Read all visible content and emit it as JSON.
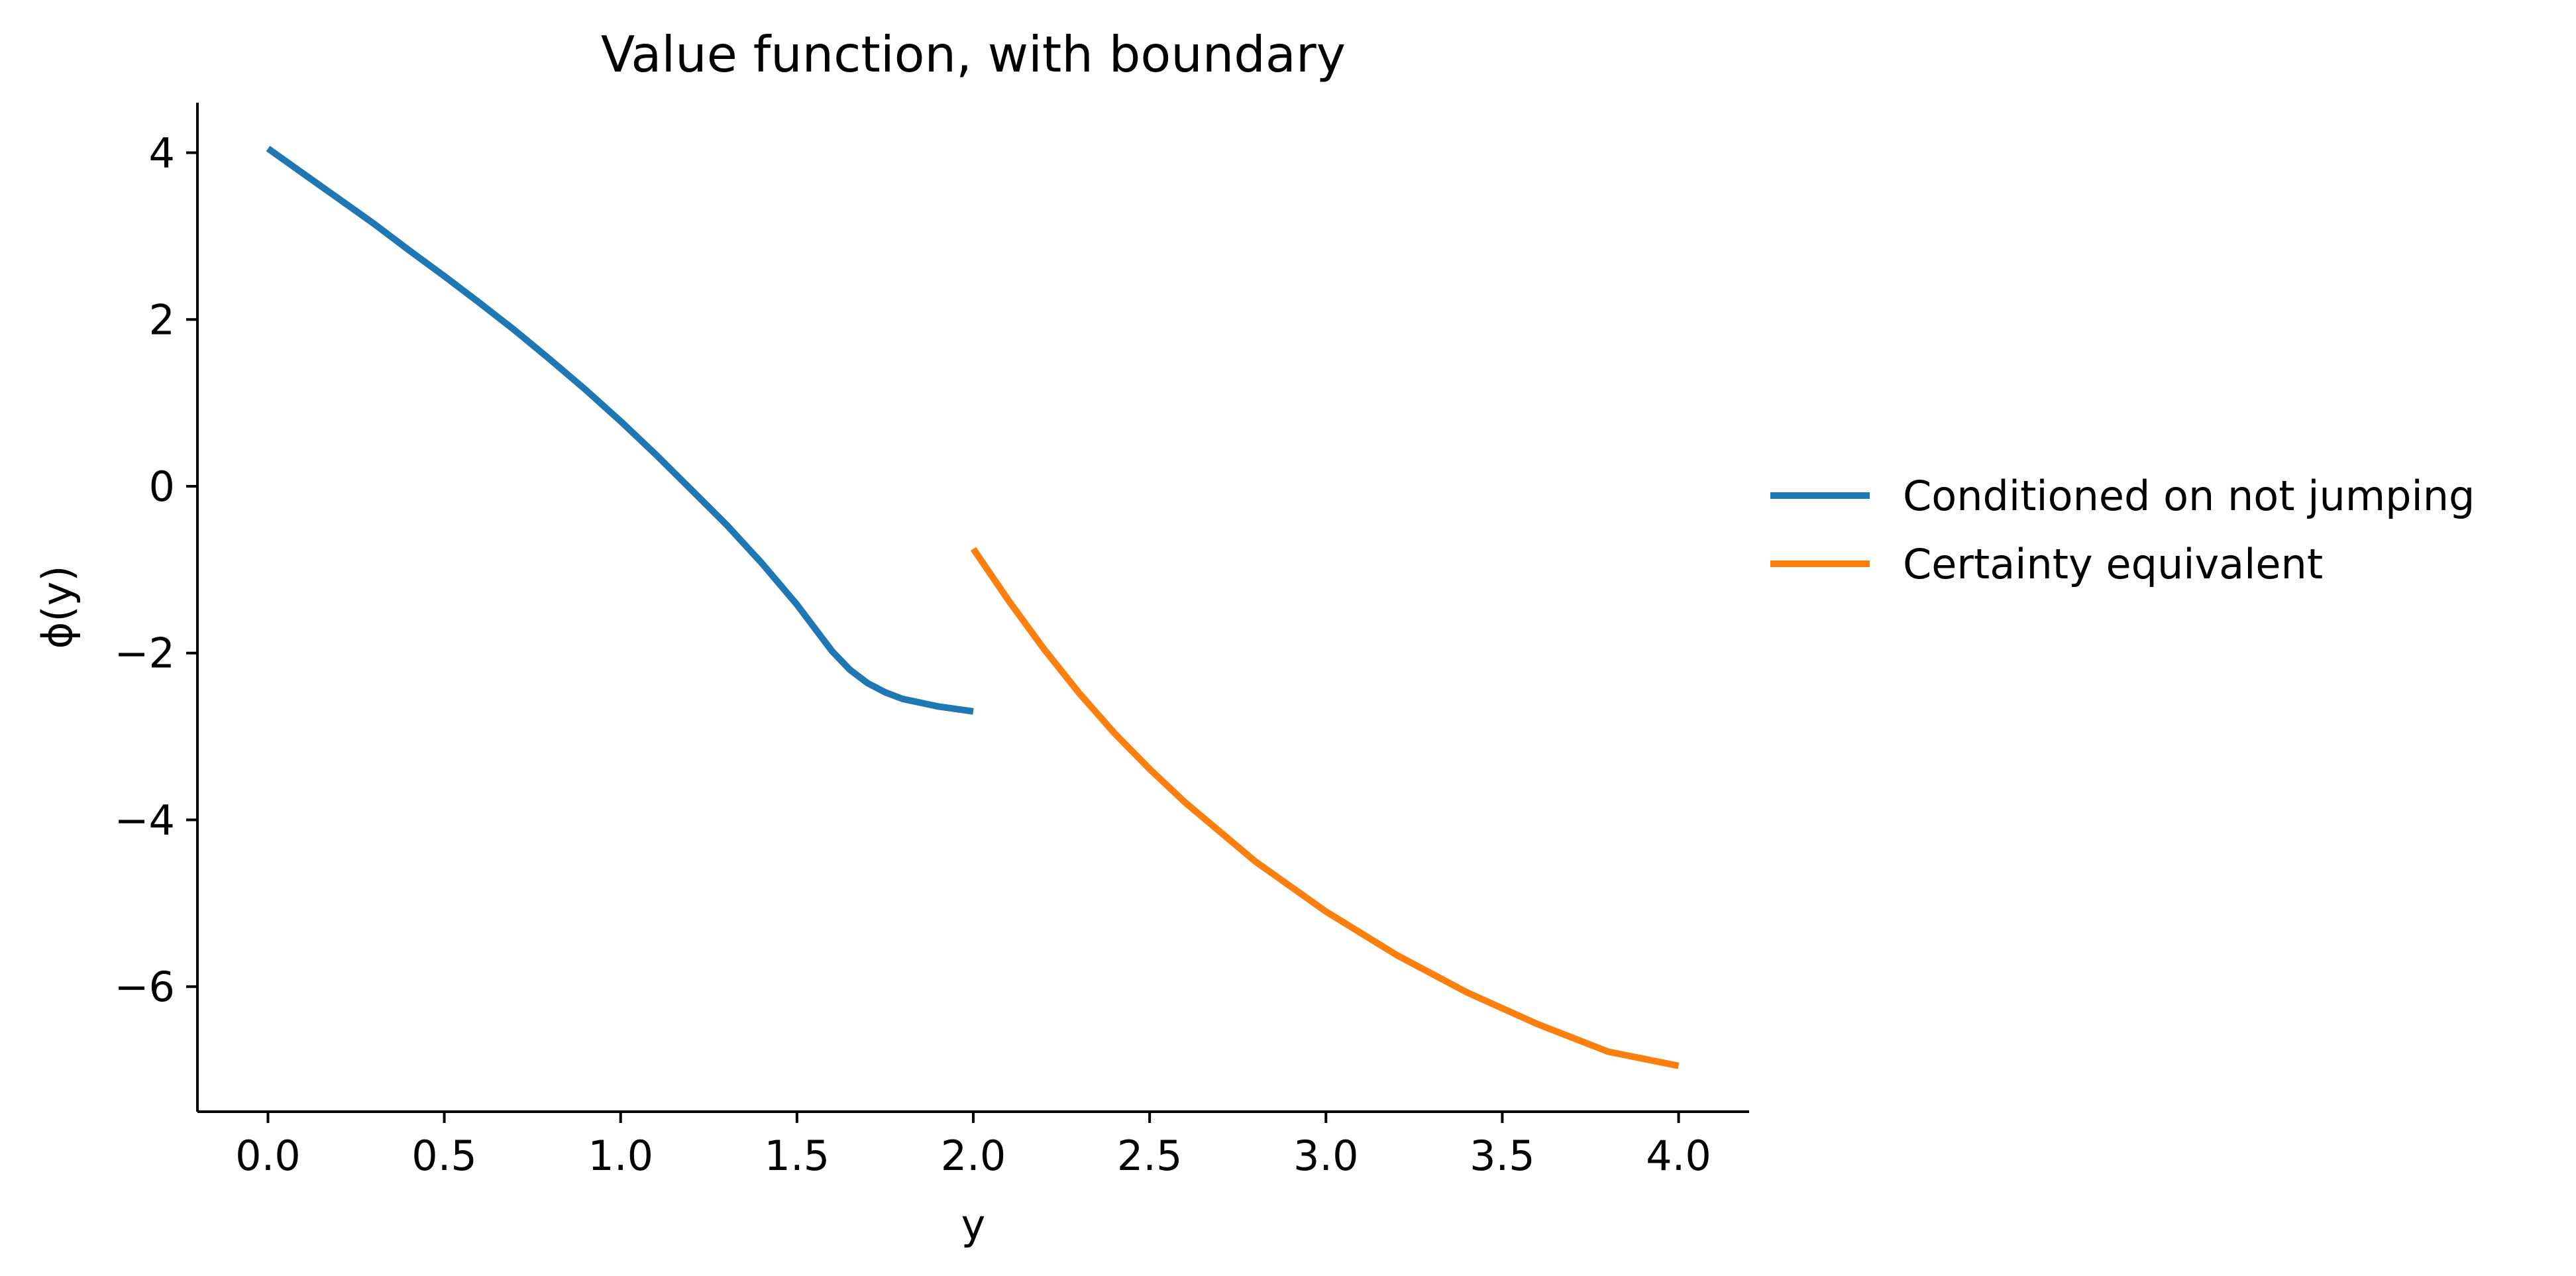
{
  "chart_data": {
    "type": "line",
    "title": "Value function, with boundary",
    "xlabel": "y",
    "ylabel": "ϕ(y)",
    "xlim": [
      -0.2,
      4.2
    ],
    "ylim": [
      -7.5,
      4.6
    ],
    "grid": false,
    "legend_position": "right, outside plot",
    "x_ticks": [
      0.0,
      0.5,
      1.0,
      1.5,
      2.0,
      2.5,
      3.0,
      3.5,
      4.0
    ],
    "x_tick_labels": [
      "0.0",
      "0.5",
      "1.0",
      "1.5",
      "2.0",
      "2.5",
      "3.0",
      "3.5",
      "4.0"
    ],
    "y_ticks": [
      4,
      2,
      0,
      -2,
      -4,
      -6
    ],
    "y_tick_labels": [
      "4",
      "2",
      "0",
      "−2",
      "−4",
      "−6"
    ],
    "series": [
      {
        "name": "Conditioned on not jumping",
        "color": "#1f77b4",
        "x": [
          0.0,
          0.1,
          0.2,
          0.3,
          0.4,
          0.5,
          0.6,
          0.7,
          0.8,
          0.9,
          1.0,
          1.1,
          1.2,
          1.3,
          1.4,
          1.5,
          1.55,
          1.6,
          1.65,
          1.7,
          1.75,
          1.8,
          1.9,
          2.0
        ],
        "y": [
          4.05,
          3.75,
          3.45,
          3.15,
          2.83,
          2.52,
          2.2,
          1.87,
          1.52,
          1.16,
          0.78,
          0.38,
          -0.04,
          -0.46,
          -0.92,
          -1.42,
          -1.7,
          -1.98,
          -2.2,
          -2.36,
          -2.47,
          -2.55,
          -2.64,
          -2.7
        ]
      },
      {
        "name": "Certainty equivalent",
        "color": "#ff7f0e",
        "x": [
          2.0,
          2.1,
          2.2,
          2.3,
          2.4,
          2.5,
          2.6,
          2.8,
          3.0,
          3.2,
          3.4,
          3.6,
          3.8,
          4.0
        ],
        "y": [
          -0.75,
          -1.37,
          -1.95,
          -2.48,
          -2.96,
          -3.39,
          -3.79,
          -4.5,
          -5.1,
          -5.62,
          -6.07,
          -6.45,
          -6.78,
          -6.95
        ]
      }
    ]
  }
}
